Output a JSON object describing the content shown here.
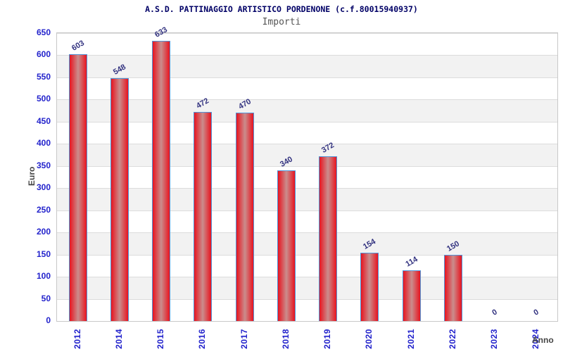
{
  "header": {
    "title": "A.S.D. PATTINAGGIO ARTISTICO PORDENONE (c.f.80015940937)",
    "subtitle": "Importi"
  },
  "chart_data": {
    "type": "bar",
    "title": "A.S.D. PATTINAGGIO ARTISTICO PORDENONE (c.f.80015940937)",
    "subtitle": "Importi",
    "xlabel": "Anno",
    "ylabel": "Euro",
    "categories": [
      "2012",
      "2014",
      "2015",
      "2016",
      "2017",
      "2018",
      "2019",
      "2020",
      "2021",
      "2022",
      "2023",
      "2024"
    ],
    "values": [
      603,
      548,
      633,
      472,
      470,
      340,
      372,
      154,
      114,
      150,
      0,
      0
    ],
    "ylim": [
      0,
      650
    ],
    "ytick_step": 50,
    "yticks": [
      0,
      50,
      100,
      150,
      200,
      250,
      300,
      350,
      400,
      450,
      500,
      550,
      600,
      650
    ],
    "grid": "horizontal gridlines with alternating white/gray bands",
    "legend": "none",
    "bar_labels_rotation_deg": -30,
    "xtick_rotation_deg": 90
  },
  "colors": {
    "title": "#000066",
    "subtitle": "#555555",
    "axis_title": "#444444",
    "tick_label": "#2323cc",
    "value_label": "#333380",
    "bar_edge": "#e8141f",
    "bar_center": "#ca8d8d",
    "bar_border": "#4f95d8",
    "band_gray": "#f2f2f2",
    "band_white": "#ffffff",
    "grid_line": "#dcdcdc",
    "plot_border": "#c8c8c8",
    "background": "#ffffff"
  }
}
